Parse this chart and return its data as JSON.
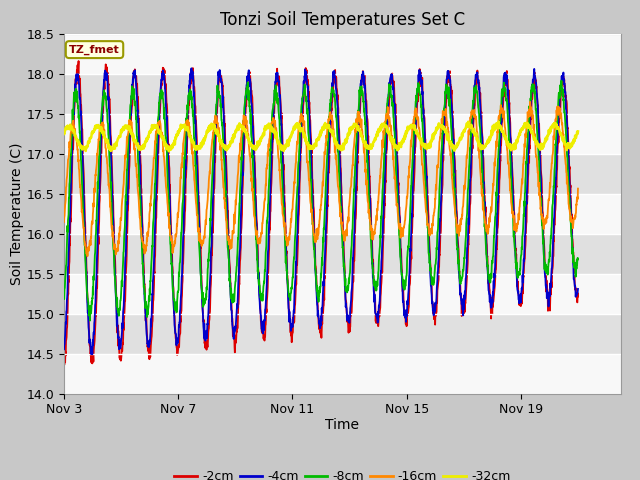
{
  "title": "Tonzi Soil Temperatures Set C",
  "xlabel": "Time",
  "ylabel": "Soil Temperature (C)",
  "ylim": [
    14.0,
    18.5
  ],
  "xlim_days": [
    0,
    19.5
  ],
  "yticks": [
    14.0,
    14.5,
    15.0,
    15.5,
    16.0,
    16.5,
    17.0,
    17.5,
    18.0,
    18.5
  ],
  "xtick_positions": [
    0,
    4,
    8,
    12,
    16
  ],
  "xtick_labels": [
    "Nov 3",
    "Nov 7",
    "Nov 11",
    "Nov 15",
    "Nov 19"
  ],
  "colors": {
    "-2cm": "#dd0000",
    "-4cm": "#0000cc",
    "-8cm": "#00bb00",
    "-16cm": "#ff8800",
    "-32cm": "#eeee00"
  },
  "legend_labels": [
    "-2cm",
    "-4cm",
    "-8cm",
    "-16cm",
    "-32cm"
  ],
  "annotation_text": "TZ_fmet",
  "fig_facecolor": "#c8c8c8",
  "plot_facecolor": "#e8e8e8",
  "grid_color": "#ffffff",
  "title_fontsize": 12,
  "axis_label_fontsize": 10,
  "tick_fontsize": 9,
  "legend_fontsize": 9
}
